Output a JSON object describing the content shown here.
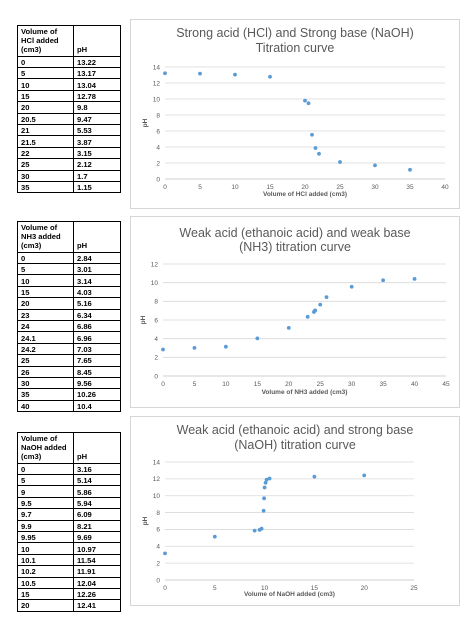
{
  "tables": [
    {
      "header": [
        "Volume of HCl added (cm3)",
        "pH"
      ],
      "rows": [
        [
          "0",
          "13.22"
        ],
        [
          "5",
          "13.17"
        ],
        [
          "10",
          "13.04"
        ],
        [
          "15",
          "12.78"
        ],
        [
          "20",
          "9.8"
        ],
        [
          "20.5",
          "9.47"
        ],
        [
          "21",
          "5.53"
        ],
        [
          "21.5",
          "3.87"
        ],
        [
          "22",
          "3.15"
        ],
        [
          "25",
          "2.12"
        ],
        [
          "30",
          "1.7"
        ],
        [
          "35",
          "1.15"
        ]
      ]
    },
    {
      "header": [
        "Volume of NH3 added (cm3)",
        "pH"
      ],
      "rows": [
        [
          "0",
          "2.84"
        ],
        [
          "5",
          "3.01"
        ],
        [
          "10",
          "3.14"
        ],
        [
          "15",
          "4.03"
        ],
        [
          "20",
          "5.16"
        ],
        [
          "23",
          "6.34"
        ],
        [
          "24",
          "6.86"
        ],
        [
          "24.1",
          "6.96"
        ],
        [
          "24.2",
          "7.03"
        ],
        [
          "25",
          "7.65"
        ],
        [
          "26",
          "8.45"
        ],
        [
          "30",
          "9.56"
        ],
        [
          "35",
          "10.26"
        ],
        [
          "40",
          "10.4"
        ]
      ]
    },
    {
      "header": [
        "Volume of NaOH added (cm3)",
        "pH"
      ],
      "rows": [
        [
          "0",
          "3.16"
        ],
        [
          "5",
          "5.14"
        ],
        [
          "9",
          "5.86"
        ],
        [
          "9.5",
          "5.94"
        ],
        [
          "9.7",
          "6.09"
        ],
        [
          "9.9",
          "8.21"
        ],
        [
          "9.95",
          "9.69"
        ],
        [
          "10",
          "10.97"
        ],
        [
          "10.1",
          "11.54"
        ],
        [
          "10.2",
          "11.91"
        ],
        [
          "10.5",
          "12.04"
        ],
        [
          "15",
          "12.26"
        ],
        [
          "20",
          "12.41"
        ]
      ]
    }
  ],
  "chart_data": [
    {
      "type": "scatter",
      "title": "Strong acid (HCl) and Strong base (NaOH) Titration curve",
      "title_lines": [
        "Strong acid (HCl) and Strong base (NaOH)",
        "Titration curve"
      ],
      "xlabel": "Volume of HCl added (cm3)",
      "ylabel": "pH",
      "xlim": [
        0,
        40
      ],
      "ylim": [
        0,
        14
      ],
      "xticks": [
        0,
        5,
        10,
        15,
        20,
        25,
        30,
        35,
        40
      ],
      "yticks": [
        0,
        2,
        4,
        6,
        8,
        10,
        12,
        14
      ],
      "grid": "horizontal",
      "color": "#5b9bd5",
      "x": [
        0,
        5,
        10,
        15,
        20,
        20.5,
        21,
        21.5,
        22,
        25,
        30,
        35
      ],
      "y": [
        13.22,
        13.17,
        13.04,
        12.78,
        9.8,
        9.47,
        5.53,
        3.87,
        3.15,
        2.12,
        1.7,
        1.15
      ]
    },
    {
      "type": "scatter",
      "title": "Weak acid (ethanoic acid) and weak base (NH3) titration curve",
      "title_lines": [
        "Weak acid (ethanoic acid) and weak base",
        "(NH3) titration curve"
      ],
      "xlabel": "Volume of NH3 added (cm3)",
      "ylabel": "pH",
      "xlim": [
        0,
        45
      ],
      "ylim": [
        0,
        12
      ],
      "xticks": [
        0,
        5,
        10,
        15,
        20,
        25,
        30,
        35,
        40,
        45
      ],
      "yticks": [
        0,
        2,
        4,
        6,
        8,
        10,
        12
      ],
      "grid": "horizontal",
      "color": "#5b9bd5",
      "x": [
        0,
        5,
        10,
        15,
        20,
        23,
        24,
        24.1,
        24.2,
        25,
        26,
        30,
        35,
        40
      ],
      "y": [
        2.84,
        3.01,
        3.14,
        4.03,
        5.16,
        6.34,
        6.86,
        6.96,
        7.03,
        7.65,
        8.45,
        9.56,
        10.26,
        10.4
      ]
    },
    {
      "type": "scatter",
      "title": "Weak acid (ethanoic acid) and strong base (NaOH) titration curve",
      "title_lines": [
        "Weak acid (ethanoic acid) and strong base",
        "(NaOH) titration curve"
      ],
      "xlabel": "Volume of NaOH added (cm3)",
      "ylabel": "pH",
      "xlim": [
        0,
        25
      ],
      "ylim": [
        0,
        14
      ],
      "xticks": [
        0,
        5,
        10,
        15,
        20,
        25
      ],
      "yticks": [
        0,
        2,
        4,
        6,
        8,
        10,
        12,
        14
      ],
      "grid": "horizontal",
      "color": "#5b9bd5",
      "x": [
        0,
        5,
        9,
        9.5,
        9.7,
        9.9,
        9.95,
        10,
        10.1,
        10.2,
        10.5,
        15,
        20
      ],
      "y": [
        3.16,
        5.14,
        5.86,
        5.94,
        6.09,
        8.21,
        9.69,
        10.97,
        11.54,
        11.91,
        12.04,
        12.26,
        12.41
      ]
    }
  ]
}
